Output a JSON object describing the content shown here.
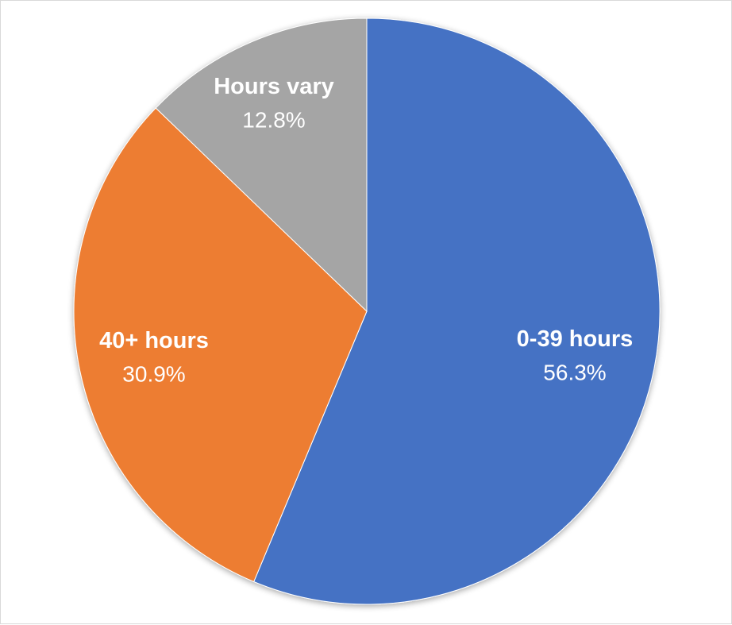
{
  "chart_data": {
    "type": "pie",
    "title": "",
    "start_angle_deg": 0,
    "direction": "clockwise",
    "slices": [
      {
        "label": "0-39 hours",
        "value": 56.3,
        "value_label": "56.3%",
        "color": "#4472C4"
      },
      {
        "label": "40+ hours",
        "value": 30.9,
        "value_label": "30.9%",
        "color": "#ED7D31"
      },
      {
        "label": "Hours vary",
        "value": 12.8,
        "value_label": "12.8%",
        "color": "#A5A5A5"
      }
    ],
    "legend": "none",
    "data_labels": "inside"
  }
}
